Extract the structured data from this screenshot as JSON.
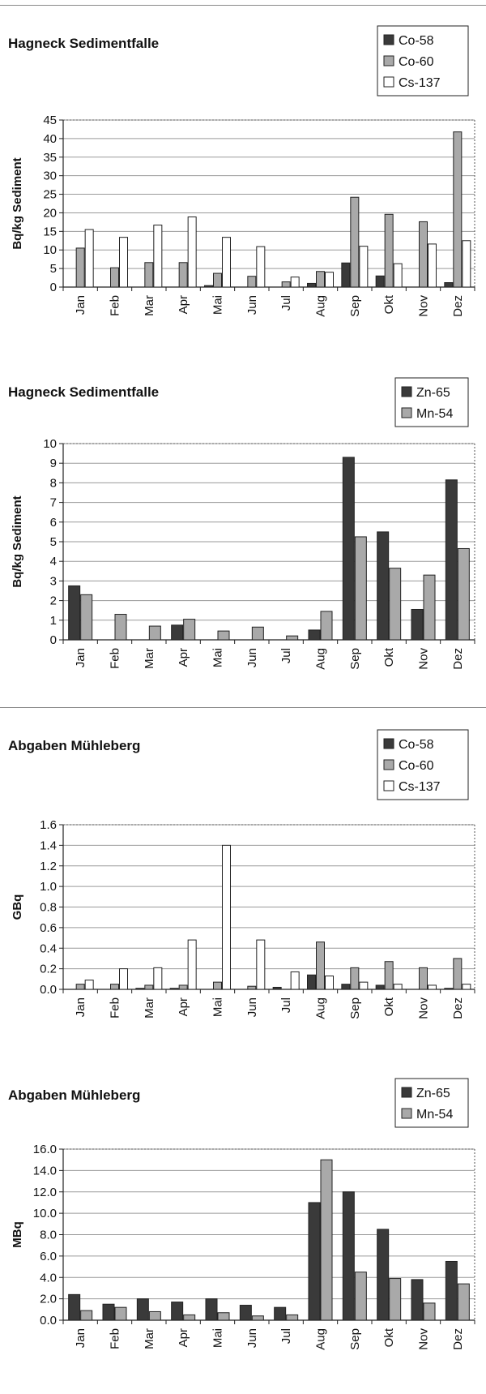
{
  "chart_data": [
    {
      "type": "bar",
      "title": "Hagneck Sedimentfalle",
      "ylabel": "Bq/kg Sediment",
      "xlabel": "",
      "ylim": [
        0,
        45
      ],
      "yticks": [
        "0",
        "5",
        "10",
        "15",
        "20",
        "25",
        "30",
        "35",
        "40",
        "45"
      ],
      "grid": true,
      "legend_position": "top-right",
      "categories": [
        "Jan",
        "Feb",
        "Mar",
        "Apr",
        "Mai",
        "Jun",
        "Jul",
        "Aug",
        "Sep",
        "Okt",
        "Nov",
        "Dez"
      ],
      "series": [
        {
          "name": "Co-58",
          "values": [
            0,
            0,
            0,
            0,
            0.4,
            0,
            0,
            1,
            6.5,
            3,
            0,
            1.2
          ]
        },
        {
          "name": "Co-60",
          "values": [
            10.5,
            5.2,
            6.6,
            6.6,
            3.7,
            2.9,
            1.4,
            4.2,
            24.2,
            19.6,
            17.6,
            41.8
          ]
        },
        {
          "name": "Cs-137",
          "values": [
            15.5,
            13.4,
            16.7,
            18.9,
            13.4,
            10.9,
            2.7,
            4.0,
            11.0,
            6.3,
            11.6,
            12.5
          ]
        }
      ]
    },
    {
      "type": "bar",
      "title": "Hagneck Sedimentfalle",
      "ylabel": "Bq/kg Sediment",
      "xlabel": "",
      "ylim": [
        0,
        10
      ],
      "yticks": [
        "0",
        "1",
        "2",
        "3",
        "4",
        "5",
        "6",
        "7",
        "8",
        "9",
        "10"
      ],
      "grid": true,
      "legend_position": "top-right",
      "categories": [
        "Jan",
        "Feb",
        "Mar",
        "Apr",
        "Mai",
        "Jun",
        "Jul",
        "Aug",
        "Sep",
        "Okt",
        "Nov",
        "Dez"
      ],
      "series": [
        {
          "name": "Zn-65",
          "values": [
            2.75,
            0,
            0,
            0.75,
            0,
            0,
            0,
            0.5,
            9.3,
            5.5,
            1.55,
            8.15
          ]
        },
        {
          "name": "Mn-54",
          "values": [
            2.3,
            1.3,
            0.7,
            1.05,
            0.45,
            0.65,
            0.2,
            1.45,
            5.25,
            3.65,
            3.3,
            4.65
          ]
        }
      ]
    },
    {
      "type": "bar",
      "title": "Abgaben Mühleberg",
      "ylabel": "GBq",
      "xlabel": "",
      "ylim": [
        0,
        1.6
      ],
      "yticks": [
        "0.0",
        "0.2",
        "0.4",
        "0.6",
        "0.8",
        "1.0",
        "1.2",
        "1.4",
        "1.6"
      ],
      "grid": true,
      "legend_position": "top-right",
      "categories": [
        "Jan",
        "Feb",
        "Mar",
        "Apr",
        "Mai",
        "Jun",
        "Jul",
        "Aug",
        "Sep",
        "Okt",
        "Nov",
        "Dez"
      ],
      "series": [
        {
          "name": "Co-58",
          "values": [
            0,
            0,
            0.01,
            0.01,
            0,
            0,
            0.02,
            0.14,
            0.05,
            0.04,
            0,
            0.01
          ]
        },
        {
          "name": "Co-60",
          "values": [
            0.05,
            0.05,
            0.04,
            0.04,
            0.07,
            0.03,
            0,
            0.46,
            0.21,
            0.27,
            0.21,
            0.3
          ]
        },
        {
          "name": "Cs-137",
          "values": [
            0.09,
            0.2,
            0.21,
            0.48,
            1.4,
            0.48,
            0.17,
            0.13,
            0.07,
            0.05,
            0.04,
            0.05
          ]
        }
      ]
    },
    {
      "type": "bar",
      "title": "Abgaben Mühleberg",
      "ylabel": "MBq",
      "xlabel": "",
      "ylim": [
        0,
        16
      ],
      "yticks": [
        "0.0",
        "2.0",
        "4.0",
        "6.0",
        "8.0",
        "10.0",
        "12.0",
        "14.0",
        "16.0"
      ],
      "grid": true,
      "legend_position": "top-right",
      "categories": [
        "Jan",
        "Feb",
        "Mar",
        "Apr",
        "Mai",
        "Jun",
        "Jul",
        "Aug",
        "Sep",
        "Okt",
        "Nov",
        "Dez"
      ],
      "series": [
        {
          "name": "Zn-65",
          "values": [
            2.4,
            1.5,
            2.0,
            1.7,
            2.0,
            1.4,
            1.2,
            11.0,
            12.0,
            8.5,
            3.8,
            5.5
          ]
        },
        {
          "name": "Mn-54",
          "values": [
            0.9,
            1.2,
            0.8,
            0.5,
            0.7,
            0.4,
            0.5,
            15.0,
            4.5,
            3.9,
            1.6,
            3.4
          ]
        }
      ]
    }
  ],
  "colors": {
    "Co-58": "#3a3a3a",
    "Co-60": "#a9a9a9",
    "Cs-137": "#ffffff",
    "Zn-65": "#3a3a3a",
    "Mn-54": "#a9a9a9",
    "grid": "#9a9a9a",
    "rule": "#8a8a8a"
  }
}
